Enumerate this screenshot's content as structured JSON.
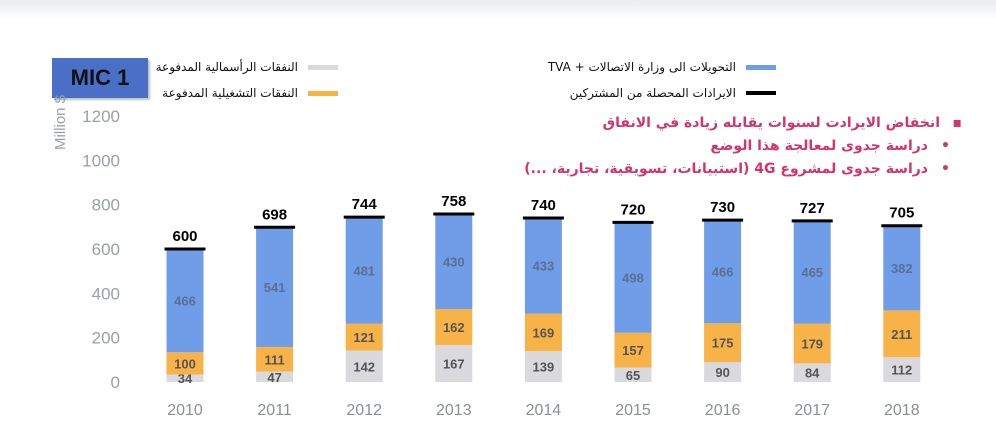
{
  "badge": "MIC 1",
  "legend": {
    "capex": "النفقات الرأسمالية المدفوعة",
    "opex": "النفقات التشغيلية المدفوعة",
    "transfers": "التحويلات الى وزارة الاتصالات + TVA",
    "revenue": "الايرادات المحصلة من المشتركين"
  },
  "notes": {
    "main": "انخفاض الايرادت لسنوات يقابله زيادة في الانفاق",
    "sub1": "دراسة جدوى لمعالجة هذا الوضع",
    "sub2": "دراسة جدوى لمشروع 4G (استبيانات، تسويقية، تجارية، ...)"
  },
  "colors": {
    "capex": "#d9d9de",
    "opex": "#f7b347",
    "transfers": "#6f9de8",
    "revenue": "#000000",
    "badge": "#4a6fc7",
    "notes": "#d6336c"
  },
  "chart_data": {
    "type": "bar",
    "stacked": true,
    "ylabel": "Million $",
    "ylim": [
      0,
      1200
    ],
    "yticks": [
      0,
      200,
      400,
      600,
      800,
      1000,
      1200
    ],
    "categories": [
      "2010",
      "2011",
      "2012",
      "2013",
      "2014",
      "2015",
      "2016",
      "2017",
      "2018"
    ],
    "series": [
      {
        "name": "النفقات الرأسمالية المدفوعة",
        "key": "capex",
        "values": [
          34,
          47,
          142,
          167,
          139,
          65,
          90,
          84,
          112
        ]
      },
      {
        "name": "النفقات التشغيلية المدفوعة",
        "key": "opex",
        "values": [
          100,
          111,
          121,
          162,
          169,
          157,
          175,
          179,
          211
        ]
      },
      {
        "name": "التحويلات الى وزارة الاتصالات + TVA",
        "key": "transfers",
        "values": [
          466,
          541,
          481,
          430,
          433,
          498,
          466,
          465,
          382
        ]
      }
    ],
    "revenue": {
      "name": "الايرادات المحصلة من المشتركين",
      "values": [
        600,
        698,
        744,
        758,
        740,
        720,
        730,
        727,
        705
      ]
    },
    "grid": false,
    "legend_position": "top"
  }
}
